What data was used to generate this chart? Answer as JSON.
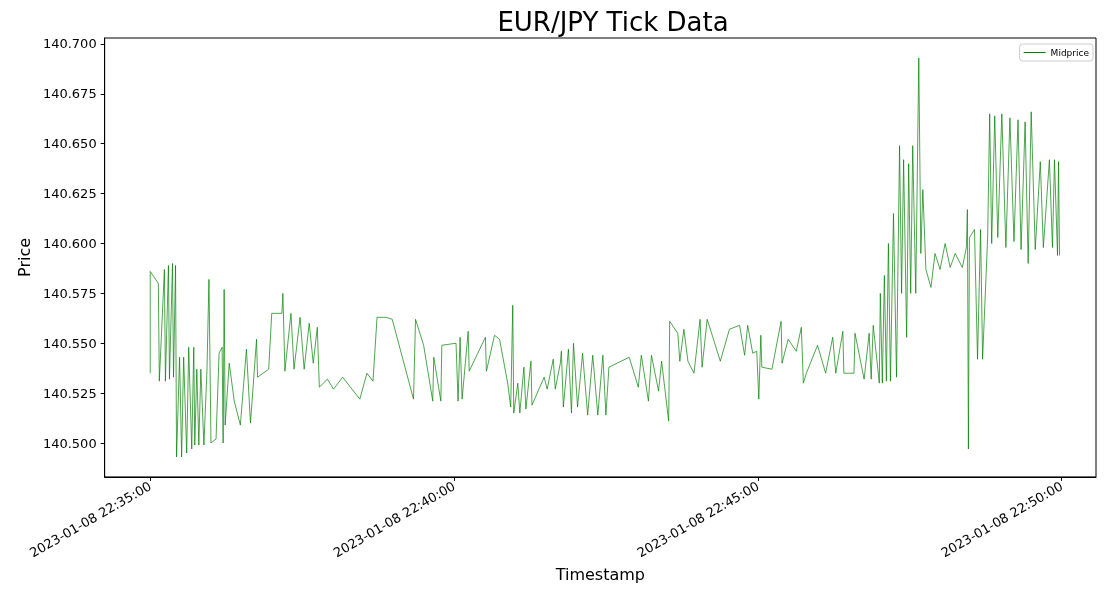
{
  "chart_data": {
    "type": "line",
    "title": "EUR/JPY Tick Data",
    "xlabel": "Timestamp",
    "ylabel": "Price",
    "xlim": [
      "2023-01-08T22:34:15",
      "2023-01-08T22:50:34"
    ],
    "xticks": [
      {
        "value": "2023-01-08T22:35",
        "label": "2023-01-08 22:35:00"
      },
      {
        "value": "2023-01-08T22:40",
        "label": "2023-01-08 22:40:00"
      },
      {
        "value": "2023-01-08T22:45",
        "label": "2023-01-08 22:45:00"
      },
      {
        "value": "2023-01-08T22:50",
        "label": "2023-01-08 22:50:00"
      }
    ],
    "ylim": [
      140.483,
      140.703
    ],
    "yticks": [
      {
        "value": 140.5,
        "label": "140.500"
      },
      {
        "value": 140.525,
        "label": "140.525"
      },
      {
        "value": 140.55,
        "label": "140.550"
      },
      {
        "value": 140.575,
        "label": "140.575"
      },
      {
        "value": 140.6,
        "label": "140.600"
      },
      {
        "value": 140.625,
        "label": "140.625"
      },
      {
        "value": 140.65,
        "label": "140.650"
      },
      {
        "value": 140.675,
        "label": "140.675"
      },
      {
        "value": 140.7,
        "label": "140.700"
      }
    ],
    "grid": false,
    "legend": "top right",
    "marker": "none",
    "x": [
      "2023-01-08T22:35:00",
      "2023-01-08T22:35:00",
      "2023-01-08T22:35:08",
      "2023-01-08T22:35:09",
      "2023-01-08T22:35:14",
      "2023-01-08T22:35:15",
      "2023-01-08T22:35:18",
      "2023-01-08T22:35:19",
      "2023-01-08T22:35:22",
      "2023-01-08T22:35:23",
      "2023-01-08T22:35:25",
      "2023-01-08T22:35:26",
      "2023-01-08T22:35:29",
      "2023-01-08T22:35:31",
      "2023-01-08T22:35:33",
      "2023-01-08T22:35:36",
      "2023-01-08T22:35:38",
      "2023-01-08T22:35:41",
      "2023-01-08T22:35:43",
      "2023-01-08T22:35:44",
      "2023-01-08T22:35:46",
      "2023-01-08T22:35:48",
      "2023-01-08T22:35:50",
      "2023-01-08T22:35:53",
      "2023-01-08T22:35:56",
      "2023-01-08T22:35:58",
      "2023-01-08T22:36:00",
      "2023-01-08T22:36:05",
      "2023-01-08T22:36:08",
      "2023-01-08T22:36:11",
      "2023-01-08T22:36:12",
      "2023-01-08T22:36:13",
      "2023-01-08T22:36:14",
      "2023-01-08T22:36:18",
      "2023-01-08T22:36:23",
      "2023-01-08T22:36:29",
      "2023-01-08T22:36:35",
      "2023-01-08T22:36:39",
      "2023-01-08T22:36:45",
      "2023-01-08T22:36:46",
      "2023-01-08T22:36:57",
      "2023-01-08T22:37:00",
      "2023-01-08T22:37:10",
      "2023-01-08T22:37:11",
      "2023-01-08T22:37:13",
      "2023-01-08T22:37:19",
      "2023-01-08T22:37:22",
      "2023-01-08T22:37:28",
      "2023-01-08T22:37:32",
      "2023-01-08T22:37:37",
      "2023-01-08T22:37:41",
      "2023-01-08T22:37:45",
      "2023-01-08T22:37:47",
      "2023-01-08T22:37:55",
      "2023-01-08T22:38:01",
      "2023-01-08T22:38:10",
      "2023-01-08T22:38:27",
      "2023-01-08T22:38:34",
      "2023-01-08T22:38:40",
      "2023-01-08T22:38:44",
      "2023-01-08T22:38:53",
      "2023-01-08T22:38:59",
      "2023-01-08T22:39:20",
      "2023-01-08T22:39:22",
      "2023-01-08T22:39:30",
      "2023-01-08T22:39:39",
      "2023-01-08T22:39:40",
      "2023-01-08T22:39:47",
      "2023-01-08T22:39:48",
      "2023-01-08T22:40:02",
      "2023-01-08T22:40:04",
      "2023-01-08T22:40:06",
      "2023-01-08T22:40:08",
      "2023-01-08T22:40:14",
      "2023-01-08T22:40:15",
      "2023-01-08T22:40:31",
      "2023-01-08T22:40:32",
      "2023-01-08T22:40:40",
      "2023-01-08T22:40:45",
      "2023-01-08T22:40:53",
      "2023-01-08T22:40:56",
      "2023-01-08T22:40:58",
      "2023-01-08T22:40:59",
      "2023-01-08T22:41:03",
      "2023-01-08T22:41:05",
      "2023-01-08T22:41:09",
      "2023-01-08T22:41:11",
      "2023-01-08T22:41:16",
      "2023-01-08T22:41:17",
      "2023-01-08T22:41:29",
      "2023-01-08T22:41:32",
      "2023-01-08T22:41:38",
      "2023-01-08T22:41:40",
      "2023-01-08T22:41:45",
      "2023-01-08T22:41:46",
      "2023-01-08T22:41:48",
      "2023-01-08T22:41:53",
      "2023-01-08T22:41:56",
      "2023-01-08T22:41:58",
      "2023-01-08T22:42:02",
      "2023-01-08T22:42:07",
      "2023-01-08T22:42:12",
      "2023-01-08T22:42:17",
      "2023-01-08T22:42:22",
      "2023-01-08T22:42:27",
      "2023-01-08T22:42:30",
      "2023-01-08T22:42:33",
      "2023-01-08T22:42:53",
      "2023-01-08T22:43:02",
      "2023-01-08T22:43:05",
      "2023-01-08T22:43:12",
      "2023-01-08T22:43:15",
      "2023-01-08T22:43:22",
      "2023-01-08T22:43:25",
      "2023-01-08T22:43:32",
      "2023-01-08T22:43:33",
      "2023-01-08T22:43:41",
      "2023-01-08T22:43:43",
      "2023-01-08T22:43:47",
      "2023-01-08T22:43:51",
      "2023-01-08T22:43:57",
      "2023-01-08T22:44:03",
      "2023-01-08T22:44:05",
      "2023-01-08T22:44:10",
      "2023-01-08T22:44:15",
      "2023-01-08T22:44:23",
      "2023-01-08T22:44:32",
      "2023-01-08T22:44:42",
      "2023-01-08T22:44:47",
      "2023-01-08T22:44:50",
      "2023-01-08T22:44:55",
      "2023-01-08T22:44:59",
      "2023-01-08T22:45:01",
      "2023-01-08T22:45:03",
      "2023-01-08T22:45:04",
      "2023-01-08T22:45:14",
      "2023-01-08T22:45:23",
      "2023-01-08T22:45:24",
      "2023-01-08T22:45:30",
      "2023-01-08T22:45:38",
      "2023-01-08T22:45:43",
      "2023-01-08T22:45:45",
      "2023-01-08T22:45:48",
      "2023-01-08T22:45:59",
      "2023-01-08T22:46:07",
      "2023-01-08T22:46:14",
      "2023-01-08T22:46:17",
      "2023-01-08T22:46:24",
      "2023-01-08T22:46:25",
      "2023-01-08T22:46:35",
      "2023-01-08T22:46:36",
      "2023-01-08T22:46:45",
      "2023-01-08T22:46:50",
      "2023-01-08T22:46:52",
      "2023-01-08T22:46:54",
      "2023-01-08T22:47:00",
      "2023-01-08T22:47:01",
      "2023-01-08T22:47:03",
      "2023-01-08T22:47:05",
      "2023-01-08T22:47:07",
      "2023-01-08T22:47:09",
      "2023-01-08T22:47:11",
      "2023-01-08T22:47:14",
      "2023-01-08T22:47:17",
      "2023-01-08T22:47:20",
      "2023-01-08T22:47:22",
      "2023-01-08T22:47:24",
      "2023-01-08T22:47:27",
      "2023-01-08T22:47:29",
      "2023-01-08T22:47:31",
      "2023-01-08T22:47:33",
      "2023-01-08T22:47:36",
      "2023-01-08T22:47:39",
      "2023-01-08T22:47:41",
      "2023-01-08T22:47:43",
      "2023-01-08T22:47:46",
      "2023-01-08T22:47:51",
      "2023-01-08T22:47:55",
      "2023-01-08T22:48:00",
      "2023-01-08T22:48:05",
      "2023-01-08T22:48:10",
      "2023-01-08T22:48:15",
      "2023-01-08T22:48:22",
      "2023-01-08T22:48:26",
      "2023-01-08T22:48:27",
      "2023-01-08T22:48:28",
      "2023-01-08T22:48:29",
      "2023-01-08T22:48:34",
      "2023-01-08T22:48:37",
      "2023-01-08T22:48:40",
      "2023-01-08T22:48:42",
      "2023-01-08T22:48:47",
      "2023-01-08T22:48:49",
      "2023-01-08T22:48:51",
      "2023-01-08T22:48:54",
      "2023-01-08T22:48:57",
      "2023-01-08T22:49:01",
      "2023-01-08T22:49:05",
      "2023-01-08T22:49:09",
      "2023-01-08T22:49:13",
      "2023-01-08T22:49:17",
      "2023-01-08T22:49:20",
      "2023-01-08T22:49:24",
      "2023-01-08T22:49:27",
      "2023-01-08T22:49:30",
      "2023-01-08T22:49:34",
      "2023-01-08T22:49:39",
      "2023-01-08T22:49:42",
      "2023-01-08T22:49:48",
      "2023-01-08T22:49:51",
      "2023-01-08T22:49:53",
      "2023-01-08T22:49:56",
      "2023-01-08T22:49:57",
      "2023-01-08T22:49:58"
    ],
    "series": [
      {
        "name": "Midprice",
        "color": "#008000",
        "values": [
          140.535,
          140.586,
          140.58,
          140.531,
          140.587,
          140.531,
          140.589,
          140.532,
          140.59,
          140.533,
          140.589,
          140.493,
          140.543,
          140.493,
          140.543,
          140.495,
          140.548,
          140.497,
          140.548,
          140.499,
          140.537,
          140.499,
          140.537,
          140.499,
          140.536,
          140.582,
          140.5,
          140.502,
          140.545,
          140.548,
          140.5,
          140.577,
          140.509,
          140.54,
          140.521,
          140.509,
          140.547,
          140.51,
          140.552,
          140.533,
          140.537,
          140.565,
          140.565,
          140.575,
          140.536,
          140.565,
          140.537,
          140.563,
          140.537,
          140.56,
          140.54,
          140.558,
          140.528,
          140.532,
          140.527,
          140.533,
          140.522,
          140.535,
          140.531,
          140.563,
          140.563,
          140.562,
          140.522,
          140.562,
          140.549,
          140.521,
          140.543,
          140.521,
          140.549,
          140.55,
          140.521,
          140.553,
          140.522,
          140.556,
          140.536,
          140.553,
          140.536,
          140.554,
          140.552,
          140.53,
          140.518,
          140.569,
          140.515,
          140.53,
          140.515,
          140.538,
          140.517,
          140.541,
          140.519,
          140.533,
          140.527,
          140.542,
          140.527,
          140.54,
          140.546,
          140.518,
          140.547,
          140.515,
          140.55,
          140.518,
          140.545,
          140.514,
          140.544,
          140.514,
          140.544,
          140.514,
          140.538,
          140.543,
          140.528,
          140.544,
          140.521,
          140.544,
          140.526,
          140.541,
          140.511,
          140.561,
          140.555,
          140.541,
          140.557,
          140.541,
          140.535,
          140.562,
          140.538,
          140.562,
          140.554,
          140.541,
          140.557,
          140.559,
          140.544,
          140.559,
          140.545,
          140.546,
          140.522,
          140.554,
          140.538,
          140.537,
          140.561,
          140.54,
          140.552,
          140.546,
          140.558,
          140.53,
          140.535,
          140.549,
          140.535,
          140.553,
          140.535,
          140.556,
          140.535,
          140.535,
          140.555,
          140.532,
          140.555,
          140.532,
          140.559,
          140.53,
          140.575,
          140.53,
          140.584,
          140.531,
          140.6,
          140.531,
          140.615,
          140.533,
          140.649,
          140.575,
          140.642,
          140.553,
          140.64,
          140.575,
          140.649,
          140.575,
          140.693,
          140.595,
          140.627,
          140.587,
          140.578,
          140.595,
          140.587,
          140.6,
          140.588,
          140.595,
          140.588,
          140.598,
          140.617,
          140.497,
          140.603,
          140.607,
          140.542,
          140.607,
          140.542,
          140.603,
          140.665,
          140.6,
          140.664,
          140.603,
          140.665,
          140.598,
          140.663,
          140.601,
          140.662,
          140.597,
          140.661,
          140.59,
          140.666,
          140.597,
          140.641,
          140.598,
          140.642,
          140.598,
          140.642,
          140.594,
          140.641,
          140.594
        ]
      }
    ]
  }
}
